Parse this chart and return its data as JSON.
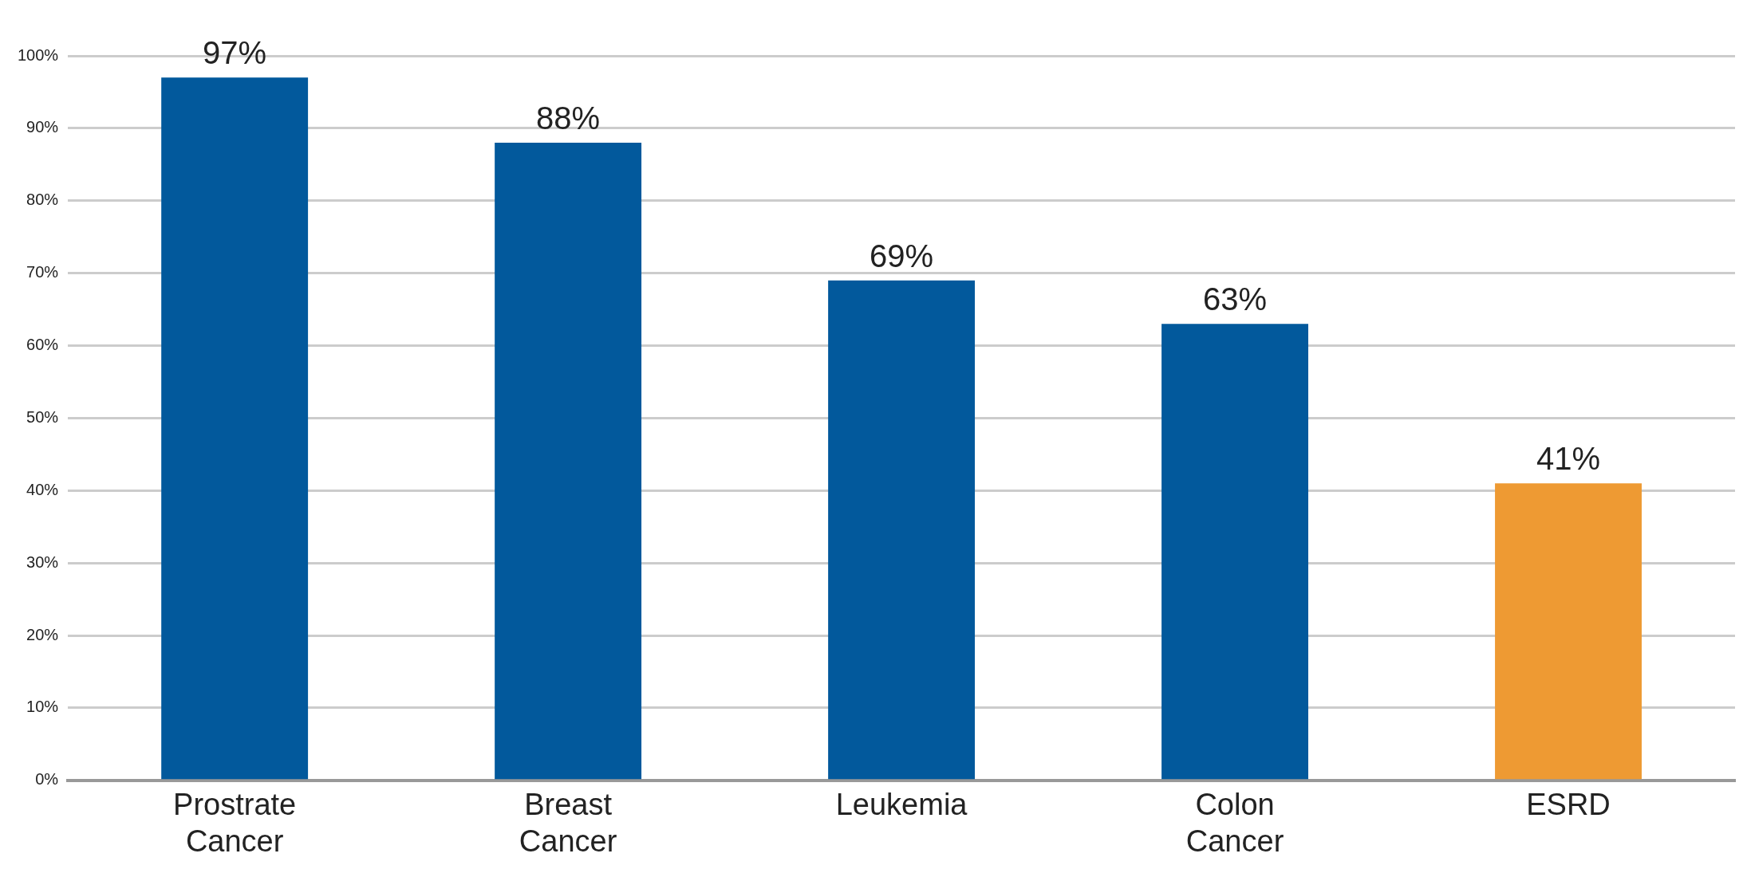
{
  "chart_data": {
    "type": "bar",
    "categories": [
      "Prostrate Cancer",
      "Breast Cancer",
      "Leukemia",
      "Colon Cancer",
      "ESRD"
    ],
    "values": [
      97,
      88,
      69,
      63,
      41
    ],
    "colors": [
      "#02599c",
      "#02599c",
      "#02599c",
      "#02599c",
      "#ee9a33"
    ],
    "ylim": [
      0,
      100
    ],
    "yticks": [
      {
        "value": 0,
        "label": "0%"
      },
      {
        "value": 10,
        "label": "10%"
      },
      {
        "value": 20,
        "label": "20%"
      },
      {
        "value": 30,
        "label": "30%"
      },
      {
        "value": 40,
        "label": "40%"
      },
      {
        "value": 50,
        "label": "50%"
      },
      {
        "value": 60,
        "label": "60%"
      },
      {
        "value": 70,
        "label": "70%"
      },
      {
        "value": 80,
        "label": "80%"
      },
      {
        "value": 90,
        "label": "90%"
      },
      {
        "value": 100,
        "label": "100%"
      }
    ],
    "grid": "y",
    "value_labels": [
      "97%",
      "88%",
      "69%",
      "63%",
      "41%"
    ]
  }
}
